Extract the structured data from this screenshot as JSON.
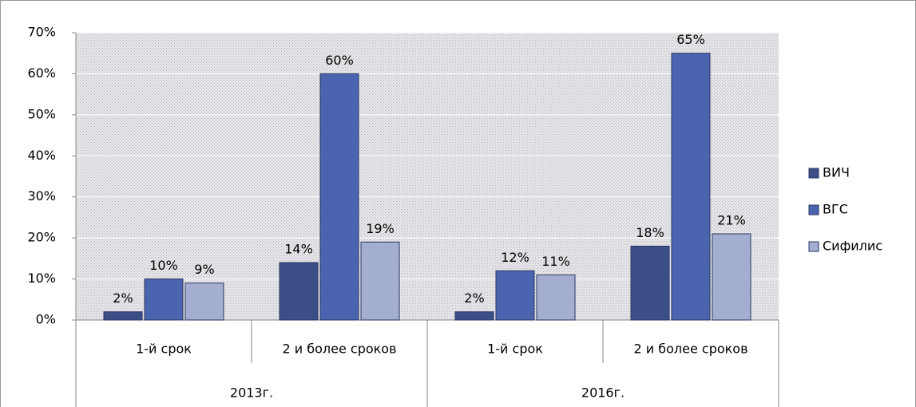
{
  "chart_data": {
    "type": "bar",
    "categories": [
      "1-й срок",
      "2 и более сроков",
      "1-й срок",
      "2 и более сроков"
    ],
    "groups": [
      "2013г.",
      "2016г."
    ],
    "series": [
      {
        "name": "ВИЧ",
        "color": "#3b4e86",
        "values": [
          2,
          14,
          2,
          18
        ],
        "value_labels": [
          "2%",
          "14%",
          "2%",
          "18%"
        ]
      },
      {
        "name": "ВГС",
        "color": "#4a64b0",
        "values": [
          10,
          60,
          12,
          65
        ],
        "value_labels": [
          "10%",
          "60%",
          "12%",
          "65%"
        ]
      },
      {
        "name": "Сифилис",
        "color": "#a4aed0",
        "values": [
          9,
          19,
          11,
          21
        ],
        "value_labels": [
          "9%",
          "19%",
          "11%",
          "21%"
        ]
      }
    ],
    "ylim": [
      0,
      70
    ],
    "yticks": [
      {
        "value": 0,
        "label": "0%"
      },
      {
        "value": 10,
        "label": "10%"
      },
      {
        "value": 20,
        "label": "20%"
      },
      {
        "value": 30,
        "label": "30%"
      },
      {
        "value": 40,
        "label": "40%"
      },
      {
        "value": 50,
        "label": "50%"
      },
      {
        "value": 60,
        "label": "60%"
      },
      {
        "value": 70,
        "label": "70%"
      }
    ],
    "grid": true,
    "legend": "right"
  }
}
